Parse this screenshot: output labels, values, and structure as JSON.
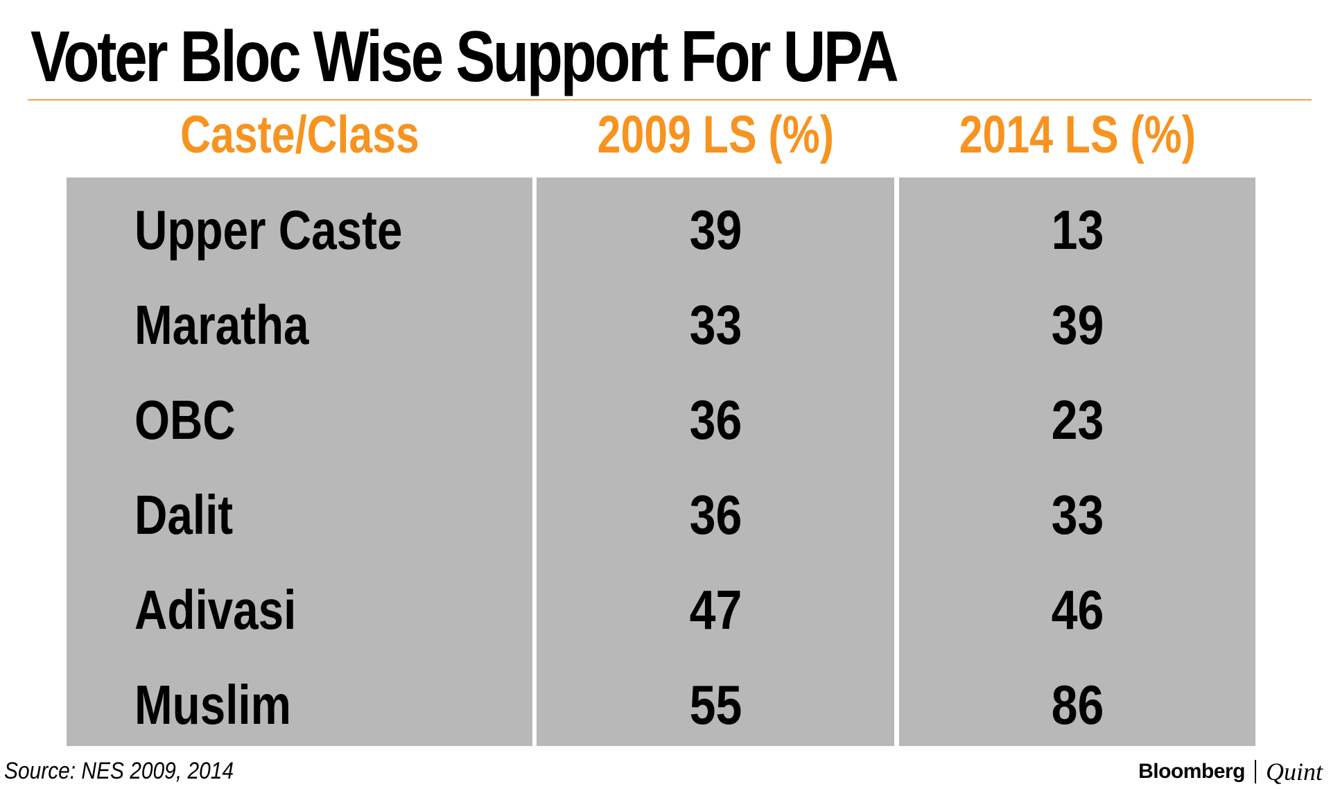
{
  "chart_data": {
    "type": "table",
    "title": "Voter Bloc Wise Support For UPA",
    "columns": [
      "Caste/Class",
      "2009 LS (%)",
      "2014 LS (%)"
    ],
    "categories": [
      "Upper Caste",
      "Maratha",
      "OBC",
      "Dalit",
      "Adivasi",
      "Muslim"
    ],
    "series": [
      {
        "name": "2009 LS (%)",
        "values": [
          39,
          33,
          36,
          36,
          47,
          55
        ]
      },
      {
        "name": "2014 LS (%)",
        "values": [
          13,
          39,
          23,
          33,
          46,
          86
        ]
      }
    ],
    "source": "Source: NES 2009, 2014"
  },
  "logo": {
    "brand": "Bloomberg",
    "sub": "Quint"
  },
  "colors": {
    "header": "#f7931e",
    "panel": "#b8b8b8",
    "rule": "#f5a04a",
    "text": "#000000"
  }
}
